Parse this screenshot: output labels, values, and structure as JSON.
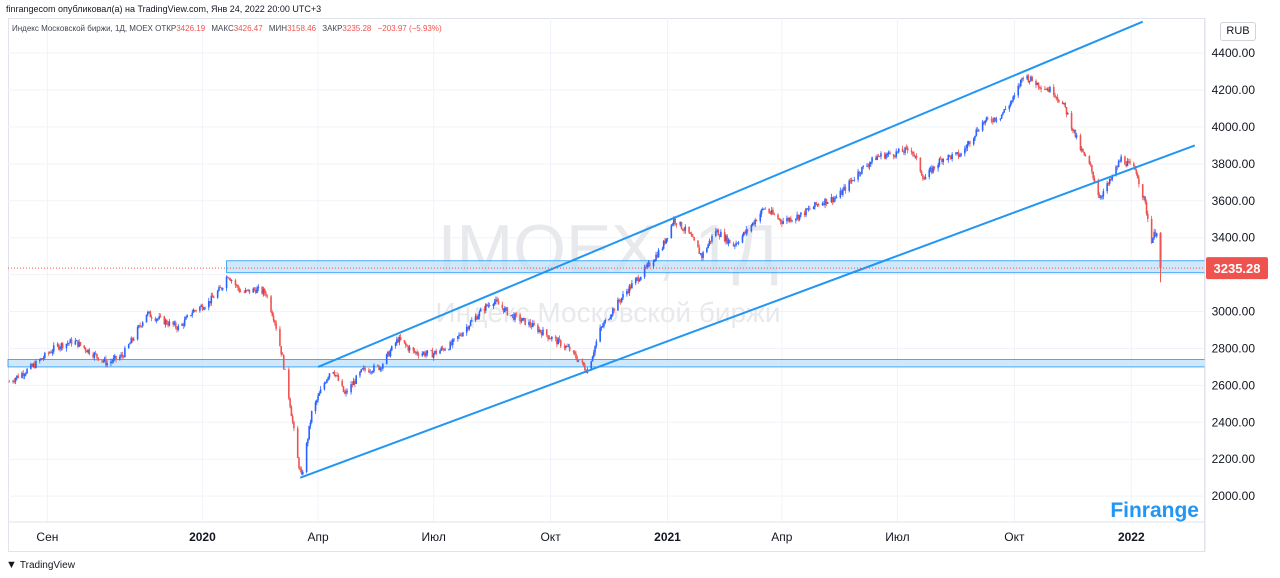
{
  "header": {
    "published": "finrangecom опубликовал(а) на TradingView.com, Янв 24, 2022 20:00 UTC+3"
  },
  "info": {
    "symbol": "Индекс Московской биржи, 1Д, MOEX",
    "open_label": "ОТКР",
    "open": "3426.19",
    "high_label": "МАКС",
    "high": "3426.47",
    "low_label": "МИН",
    "low": "3158.46",
    "close_label": "ЗАКР",
    "close": "3235.28",
    "change": "−203.97 (−5.93%)"
  },
  "watermark": {
    "ticker": "IMOEX, 1Д",
    "name": "Индекс Московской биржи"
  },
  "brand": "Finrange",
  "currency": "RUB",
  "footer": {
    "logo_text": "TradingView",
    "logo_icon": "tradingview-icon"
  },
  "colors": {
    "up": "#2962ff",
    "down": "#ef5350",
    "channel": "#2196f3",
    "zone_fill": "#bbdefb",
    "price_label": "#ef5350",
    "brand": "#2196f3"
  },
  "chart_data": {
    "type": "candlestick",
    "title": "Индекс Московской биржи, 1Д, MOEX",
    "ylabel": "RUB",
    "ylim": [
      1860,
      4590
    ],
    "y_ticks": [
      "4400.00",
      "4200.00",
      "4000.00",
      "3800.00",
      "3600.00",
      "3400.00",
      "3200.00",
      "3000.00",
      "2800.00",
      "2600.00",
      "2400.00",
      "2200.00",
      "2000.00"
    ],
    "x_ticks": [
      "Сен",
      "2020",
      "Апр",
      "Июл",
      "Окт",
      "2021",
      "Апр",
      "Июл",
      "Окт",
      "2022"
    ],
    "x_tick_dates": [
      "2019-09-01",
      "2020-01-01",
      "2020-04-01",
      "2020-07-01",
      "2020-10-01",
      "2021-01-01",
      "2021-04-01",
      "2021-07-01",
      "2021-10-01",
      "2022-01-01"
    ],
    "xlim": [
      "2019-08-01",
      "2022-02-28"
    ],
    "last_price": 3235.28,
    "price_path": [
      {
        "date": "2019-08-02",
        "price": 2620
      },
      {
        "date": "2019-08-20",
        "price": 2700
      },
      {
        "date": "2019-09-08",
        "price": 2810
      },
      {
        "date": "2019-09-22",
        "price": 2840
      },
      {
        "date": "2019-10-05",
        "price": 2780
      },
      {
        "date": "2019-10-18",
        "price": 2720
      },
      {
        "date": "2019-10-30",
        "price": 2760
      },
      {
        "date": "2019-11-08",
        "price": 2860
      },
      {
        "date": "2019-11-18",
        "price": 2990
      },
      {
        "date": "2019-12-01",
        "price": 2950
      },
      {
        "date": "2019-12-14",
        "price": 2910
      },
      {
        "date": "2019-12-24",
        "price": 3000
      },
      {
        "date": "2020-01-06",
        "price": 3050
      },
      {
        "date": "2020-01-16",
        "price": 3130
      },
      {
        "date": "2020-01-21",
        "price": 3200
      },
      {
        "date": "2020-02-01",
        "price": 3100
      },
      {
        "date": "2020-02-12",
        "price": 3120
      },
      {
        "date": "2020-02-20",
        "price": 3100
      },
      {
        "date": "2020-02-27",
        "price": 2950
      },
      {
        "date": "2020-03-04",
        "price": 2750
      },
      {
        "date": "2020-03-10",
        "price": 2500
      },
      {
        "date": "2020-03-16",
        "price": 2200
      },
      {
        "date": "2020-03-19",
        "price": 2100
      },
      {
        "date": "2020-03-27",
        "price": 2450
      },
      {
        "date": "2020-04-05",
        "price": 2600
      },
      {
        "date": "2020-04-12",
        "price": 2700
      },
      {
        "date": "2020-04-22",
        "price": 2550
      },
      {
        "date": "2020-05-06",
        "price": 2680
      },
      {
        "date": "2020-05-20",
        "price": 2700
      },
      {
        "date": "2020-06-03",
        "price": 2850
      },
      {
        "date": "2020-06-15",
        "price": 2780
      },
      {
        "date": "2020-06-30",
        "price": 2770
      },
      {
        "date": "2020-07-15",
        "price": 2820
      },
      {
        "date": "2020-07-30",
        "price": 2940
      },
      {
        "date": "2020-08-10",
        "price": 3020
      },
      {
        "date": "2020-08-17",
        "price": 3060
      },
      {
        "date": "2020-08-31",
        "price": 2980
      },
      {
        "date": "2020-09-15",
        "price": 2930
      },
      {
        "date": "2020-10-01",
        "price": 2860
      },
      {
        "date": "2020-10-15",
        "price": 2800
      },
      {
        "date": "2020-10-30",
        "price": 2680
      },
      {
        "date": "2020-11-09",
        "price": 2900
      },
      {
        "date": "2020-11-20",
        "price": 3020
      },
      {
        "date": "2020-12-01",
        "price": 3120
      },
      {
        "date": "2020-12-15",
        "price": 3230
      },
      {
        "date": "2020-12-28",
        "price": 3350
      },
      {
        "date": "2021-01-06",
        "price": 3500
      },
      {
        "date": "2021-01-18",
        "price": 3420
      },
      {
        "date": "2021-01-28",
        "price": 3300
      },
      {
        "date": "2021-02-08",
        "price": 3440
      },
      {
        "date": "2021-02-22",
        "price": 3360
      },
      {
        "date": "2021-03-05",
        "price": 3440
      },
      {
        "date": "2021-03-18",
        "price": 3560
      },
      {
        "date": "2021-04-01",
        "price": 3490
      },
      {
        "date": "2021-04-15",
        "price": 3520
      },
      {
        "date": "2021-05-01",
        "price": 3590
      },
      {
        "date": "2021-05-15",
        "price": 3620
      },
      {
        "date": "2021-06-01",
        "price": 3760
      },
      {
        "date": "2021-06-15",
        "price": 3840
      },
      {
        "date": "2021-07-01",
        "price": 3860
      },
      {
        "date": "2021-07-12",
        "price": 3880
      },
      {
        "date": "2021-07-22",
        "price": 3720
      },
      {
        "date": "2021-08-05",
        "price": 3830
      },
      {
        "date": "2021-08-20",
        "price": 3850
      },
      {
        "date": "2021-09-05",
        "price": 4020
      },
      {
        "date": "2021-09-20",
        "price": 4060
      },
      {
        "date": "2021-10-01",
        "price": 4160
      },
      {
        "date": "2021-10-08",
        "price": 4280
      },
      {
        "date": "2021-10-20",
        "price": 4230
      },
      {
        "date": "2021-11-01",
        "price": 4190
      },
      {
        "date": "2021-11-10",
        "price": 4100
      },
      {
        "date": "2021-11-22",
        "price": 3880
      },
      {
        "date": "2021-11-30",
        "price": 3780
      },
      {
        "date": "2021-12-07",
        "price": 3620
      },
      {
        "date": "2021-12-15",
        "price": 3700
      },
      {
        "date": "2021-12-24",
        "price": 3830
      },
      {
        "date": "2022-01-05",
        "price": 3760
      },
      {
        "date": "2022-01-12",
        "price": 3580
      },
      {
        "date": "2022-01-17",
        "price": 3390
      },
      {
        "date": "2022-01-21",
        "price": 3440
      },
      {
        "date": "2022-01-24",
        "price": 3235.28
      }
    ],
    "channel": {
      "upper": [
        {
          "date": "2020-04-01",
          "price": 2700
        },
        {
          "date": "2022-01-10",
          "price": 4570
        }
      ],
      "lower": [
        {
          "date": "2020-03-18",
          "price": 2100
        },
        {
          "date": "2022-02-20",
          "price": 3900
        }
      ]
    },
    "zones": [
      {
        "from": 3210,
        "to": 3275,
        "start": "2020-01-20"
      },
      {
        "from": 2700,
        "to": 2740,
        "start": "2019-08-01"
      }
    ]
  }
}
